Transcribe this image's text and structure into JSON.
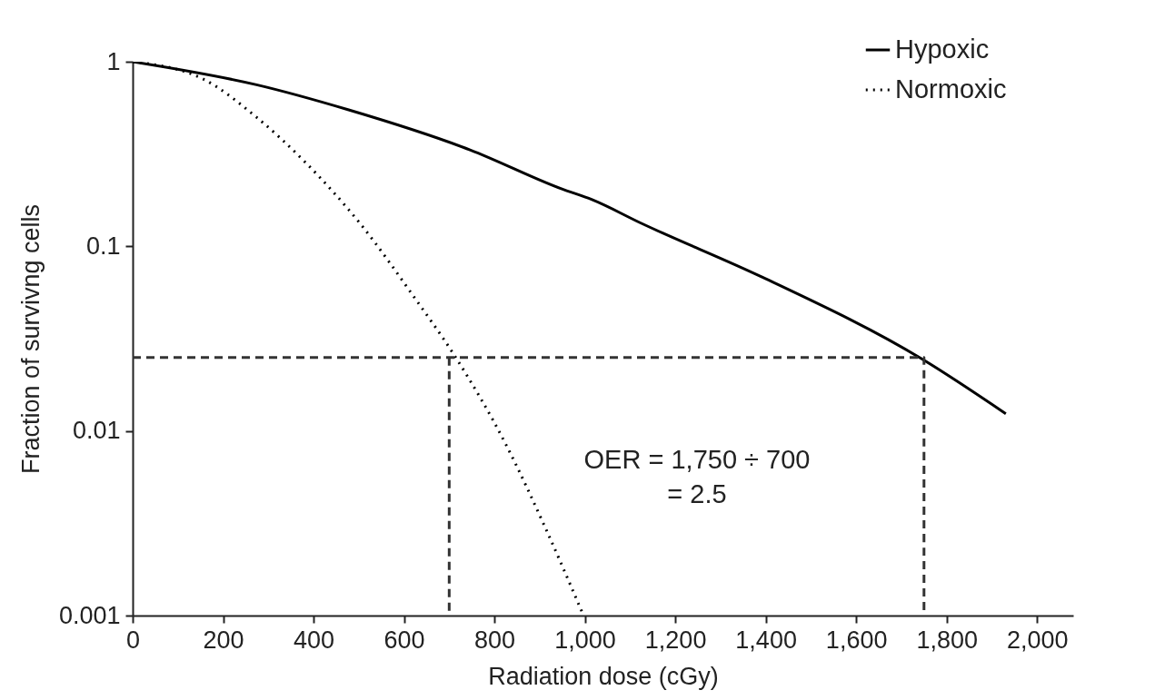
{
  "chart_data": {
    "type": "line",
    "xlabel": "Radiation dose (cGy)",
    "ylabel": "Fraction of survivng cells",
    "log": "y",
    "xlim": [
      0,
      2080
    ],
    "ylim": [
      0.001,
      1
    ],
    "xticks": [
      0,
      200,
      400,
      600,
      800,
      {
        "value": 1000,
        "label": "1,000"
      },
      {
        "value": 1200,
        "label": "1,200"
      },
      {
        "value": 1400,
        "label": "1,400"
      },
      {
        "value": 1600,
        "label": "1,600"
      },
      {
        "value": 1800,
        "label": "1,800"
      },
      {
        "value": 2000,
        "label": "2,000"
      }
    ],
    "yticks": [
      0.001,
      0.01,
      0.1,
      1
    ],
    "grid": false,
    "legend": "top right",
    "marker": "none",
    "series": [
      {
        "name": "Hypoxic",
        "color": "#000000",
        "line_style": "solid",
        "x": [
          0,
          274,
          476,
          746,
          948,
          1016,
          1123,
          1393,
          1746,
          1931
        ],
        "values": [
          1,
          0.75,
          0.55,
          0.333,
          0.205,
          0.179,
          0.134,
          0.068,
          0.0245,
          0.0124
        ]
      },
      {
        "name": "Normoxic",
        "color": "#000000",
        "line_style": "dotted",
        "x": [
          0,
          154,
          274,
          382,
          504,
          625,
          710,
          827,
          915,
          997
        ],
        "values": [
          1,
          0.81,
          0.5,
          0.285,
          0.132,
          0.052,
          0.026,
          0.0083,
          0.0029,
          0.001
        ]
      },
      {
        "color": "#333333",
        "line_style": "dashed",
        "x": [
          0,
          1750,
          1750
        ],
        "values": [
          0.025,
          0.025,
          0.001
        ]
      },
      {
        "color": "#333333",
        "line_style": "dashed",
        "x": [
          700,
          700
        ],
        "values": [
          0.025,
          0.001
        ]
      }
    ],
    "annotations": [
      "OER = 1,750 ÷ 700\n= 2.5"
    ]
  }
}
